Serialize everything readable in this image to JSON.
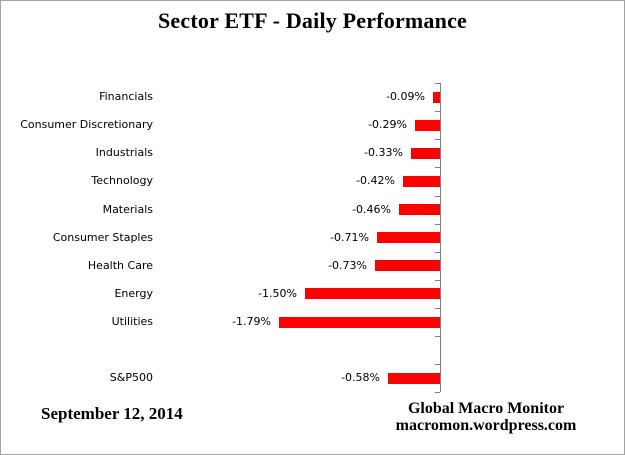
{
  "title": "Sector ETF - Daily Performance",
  "footer": {
    "date": "September 12, 2014",
    "source_line1": "Global Macro Monitor",
    "source_line2": "macromon.wordpress.com"
  },
  "chart_data": {
    "type": "bar",
    "orientation": "horizontal",
    "title": "Sector ETF - Daily Performance",
    "categories": [
      "Financials",
      "Consumer Discretionary",
      "Industrials",
      "Technology",
      "Materials",
      "Consumer Staples",
      "Health Care",
      "Energy",
      "Utilities",
      "S&P500"
    ],
    "values": [
      -0.09,
      -0.29,
      -0.33,
      -0.42,
      -0.46,
      -0.71,
      -0.73,
      -1.5,
      -1.79,
      -0.58
    ],
    "value_labels": [
      "-0.09%",
      "-0.29%",
      "-0.33%",
      "-0.42%",
      "-0.46%",
      "-0.71%",
      "-0.73%",
      "-1.50%",
      "-1.79%",
      "-0.58%"
    ],
    "unit": "percent",
    "xlim": [
      -2.0,
      0
    ],
    "grid": false,
    "legend": false,
    "gap_before_category": "S&P500",
    "bar_color": "#FF0000",
    "axis_color": "#808080",
    "label_color": "#000000"
  }
}
